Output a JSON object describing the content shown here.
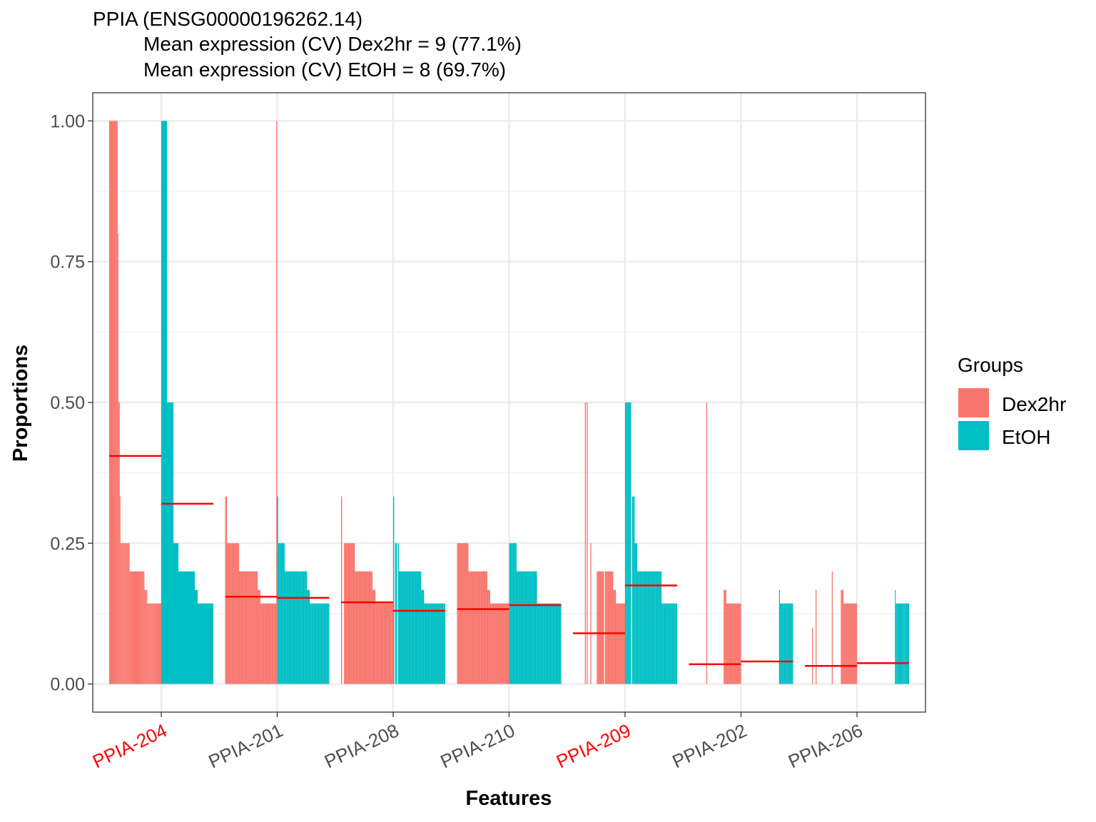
{
  "chart_data": {
    "type": "bar",
    "title": [
      "PPIA (ENSG00000196262.14)",
      "Mean expression (CV) Dex2hr = 9 (77.1%)",
      "Mean expression (CV) EtOH = 8 (69.7%)"
    ],
    "xlabel": "Features",
    "ylabel": "Proportions",
    "ylim": [
      -0.05,
      1.05
    ],
    "yticks": [
      {
        "value": 0.0,
        "label": "0.00"
      },
      {
        "value": 0.25,
        "label": "0.25"
      },
      {
        "value": 0.5,
        "label": "0.50"
      },
      {
        "value": 0.75,
        "label": "0.75"
      },
      {
        "value": 1.0,
        "label": "1.00"
      }
    ],
    "grid": true,
    "legend": {
      "title": "Groups",
      "position": "right",
      "items": [
        {
          "name": "Dex2hr",
          "color": "#F8766D"
        },
        {
          "name": "EtOH",
          "color": "#00BFC4"
        }
      ]
    },
    "colors": {
      "Dex2hr": "#F8766D",
      "EtOH": "#00BFC4",
      "mean_line": "#FF0000",
      "highlight_label": "#FF0000",
      "normal_label": "#4d4d4d"
    },
    "categories": [
      {
        "name": "PPIA-204",
        "highlight": true,
        "groups": [
          {
            "group": "Dex2hr",
            "mean": 0.405,
            "values": [
              1.0,
              1.0,
              1.0,
              1.0,
              1.0,
              1.0,
              1.0,
              1.0,
              1.0,
              1.0,
              1.0,
              1.0,
              0.8,
              0.5,
              0.5,
              0.333,
              0.25,
              0.25,
              0.25,
              0.25,
              0.25,
              0.25,
              0.25,
              0.25,
              0.25,
              0.25,
              0.25,
              0.25,
              0.25,
              0.2,
              0.2,
              0.2,
              0.2,
              0.2,
              0.2,
              0.2,
              0.2,
              0.2,
              0.2,
              0.2,
              0.2,
              0.2,
              0.2,
              0.2,
              0.2,
              0.2,
              0.2,
              0.2,
              0.2,
              0.2,
              0.167,
              0.167,
              0.167,
              0.167,
              0.143,
              0.143,
              0.143,
              0.143,
              0.143,
              0.143,
              0.143,
              0.143,
              0.143,
              0.143,
              0.143,
              0.143,
              0.143,
              0.143,
              0.143,
              0.143,
              0.143,
              0.143,
              0.143,
              0.143
            ]
          },
          {
            "group": "EtOH",
            "mean": 0.32,
            "values": [
              1.0,
              1.0,
              1.0,
              1.0,
              1.0,
              1.0,
              1.0,
              1.0,
              0.5,
              0.5,
              0.5,
              0.5,
              0.5,
              0.5,
              0.5,
              0.5,
              0.5,
              0.25,
              0.25,
              0.25,
              0.25,
              0.25,
              0.25,
              0.25,
              0.2,
              0.2,
              0.2,
              0.2,
              0.2,
              0.2,
              0.2,
              0.2,
              0.2,
              0.2,
              0.2,
              0.2,
              0.2,
              0.2,
              0.2,
              0.2,
              0.2,
              0.2,
              0.2,
              0.2,
              0.2,
              0.2,
              0.2,
              0.167,
              0.167,
              0.167,
              0.167,
              0.143,
              0.143,
              0.143,
              0.143,
              0.143,
              0.143,
              0.143,
              0.143,
              0.143,
              0.143,
              0.143,
              0.143,
              0.143,
              0.143,
              0.143,
              0.143,
              0.143,
              0.143,
              0.143,
              0.143,
              0.143,
              0.143
            ]
          }
        ]
      },
      {
        "name": "PPIA-201",
        "highlight": false,
        "groups": [
          {
            "group": "Dex2hr",
            "mean": 0.155,
            "values": [
              0.333,
              0.333,
              0.25,
              0.25,
              0.25,
              0.25,
              0.25,
              0.25,
              0.25,
              0.25,
              0.25,
              0.25,
              0.25,
              0.25,
              0.25,
              0.2,
              0.2,
              0.2,
              0.2,
              0.2,
              0.2,
              0.2,
              0.2,
              0.2,
              0.2,
              0.2,
              0.2,
              0.2,
              0.2,
              0.2,
              0.2,
              0.2,
              0.2,
              0.2,
              0.2,
              0.167,
              0.167,
              0.167,
              0.143,
              0.143,
              0.143,
              0.143,
              0.143,
              0.143,
              0.143,
              0.143,
              0.143,
              0.143,
              0.143,
              0.143,
              0.143,
              0.143,
              0.143,
              0.143,
              0.143,
              1.0
            ]
          },
          {
            "group": "EtOH",
            "mean": 0.153,
            "values": [
              0.333,
              0.25,
              0.25,
              0.25,
              0.25,
              0.25,
              0.25,
              0.25,
              0.2,
              0.2,
              0.2,
              0.2,
              0.2,
              0.2,
              0.2,
              0.2,
              0.2,
              0.2,
              0.2,
              0.2,
              0.2,
              0.2,
              0.2,
              0.2,
              0.2,
              0.2,
              0.2,
              0.2,
              0.2,
              0.2,
              0.2,
              0.2,
              0.167,
              0.167,
              0.167,
              0.143,
              0.143,
              0.143,
              0.143,
              0.143,
              0.143,
              0.143,
              0.143,
              0.143,
              0.143,
              0.143,
              0.143,
              0.143,
              0.143,
              0.143,
              0.143,
              0.143,
              0.143,
              0.143,
              0.143,
              0.143
            ]
          }
        ]
      },
      {
        "name": "PPIA-208",
        "highlight": false,
        "groups": [
          {
            "group": "Dex2hr",
            "mean": 0.145,
            "values": [
              0.333,
              0,
              0,
              0.25,
              0.25,
              0.25,
              0.25,
              0.25,
              0.25,
              0.25,
              0.25,
              0.25,
              0.25,
              0.25,
              0.2,
              0.2,
              0.2,
              0.2,
              0.2,
              0.2,
              0.2,
              0.2,
              0.2,
              0.2,
              0.2,
              0.2,
              0.2,
              0.2,
              0.2,
              0.2,
              0.2,
              0.2,
              0.167,
              0.167,
              0.167,
              0.143,
              0.143,
              0.143,
              0.143,
              0.143,
              0.143,
              0.143,
              0.143,
              0.143,
              0.143,
              0.143,
              0.143,
              0.143,
              0.143,
              0.143,
              0.143,
              0.143,
              0.143
            ]
          },
          {
            "group": "EtOH",
            "mean": 0.13,
            "values": [
              0.333,
              0,
              0.25,
              0.25,
              0,
              0.25,
              0.2,
              0.2,
              0.2,
              0.2,
              0.2,
              0.2,
              0.2,
              0.2,
              0.2,
              0.2,
              0.2,
              0.2,
              0.2,
              0.2,
              0.2,
              0.2,
              0.2,
              0.2,
              0.2,
              0.2,
              0.2,
              0.2,
              0.2,
              0.167,
              0.167,
              0.167,
              0.143,
              0.143,
              0.143,
              0.143,
              0.143,
              0.143,
              0.143,
              0.143,
              0.143,
              0.143,
              0.143,
              0.143,
              0.143,
              0.143,
              0.143,
              0.143,
              0.143,
              0.143,
              0.143,
              0.143,
              0.143,
              0.143
            ]
          }
        ]
      },
      {
        "name": "PPIA-210",
        "highlight": false,
        "groups": [
          {
            "group": "Dex2hr",
            "mean": 0.133,
            "values": [
              0.25,
              0.25,
              0.25,
              0.25,
              0.25,
              0.25,
              0.25,
              0.25,
              0.25,
              0.25,
              0.25,
              0.25,
              0.2,
              0.2,
              0.2,
              0.2,
              0.2,
              0.2,
              0.2,
              0.2,
              0.2,
              0.2,
              0.2,
              0.2,
              0.2,
              0.2,
              0.2,
              0.2,
              0.2,
              0.2,
              0.2,
              0.2,
              0.167,
              0.167,
              0.167,
              0.143,
              0.143,
              0.143,
              0.143,
              0.143,
              0.143,
              0.143,
              0.143,
              0.143,
              0.143,
              0.143,
              0.143,
              0.143,
              0.143,
              0.143,
              0.143,
              0.143,
              0.143,
              0.143,
              0.143
            ]
          },
          {
            "group": "EtOH",
            "mean": 0.14,
            "values": [
              0.25,
              0.25,
              0.25,
              0.25,
              0.25,
              0.25,
              0.25,
              0.25,
              0.2,
              0.2,
              0.2,
              0.2,
              0.2,
              0.2,
              0.2,
              0.2,
              0.2,
              0.2,
              0.2,
              0.2,
              0.2,
              0.2,
              0.2,
              0.2,
              0.2,
              0.2,
              0.2,
              0.2,
              0.2,
              0.2,
              0.143,
              0.143,
              0.143,
              0.143,
              0.143,
              0.143,
              0.143,
              0.143,
              0.143,
              0.143,
              0.143,
              0.143,
              0.143,
              0.143,
              0.143,
              0.143,
              0.143,
              0.143,
              0.143,
              0.143,
              0.143,
              0.143,
              0.143,
              0.143,
              0.143,
              0.143
            ]
          }
        ]
      },
      {
        "name": "PPIA-209",
        "highlight": true,
        "groups": [
          {
            "group": "Dex2hr",
            "mean": 0.09,
            "values": [
              0,
              0,
              0,
              0,
              0,
              0,
              0,
              0,
              0,
              0,
              0,
              0,
              0,
              0.5,
              0,
              0.5,
              0,
              0,
              0,
              0.25,
              0,
              0,
              0,
              0,
              0,
              0,
              0.2,
              0.2,
              0.2,
              0.2,
              0.2,
              0.2,
              0.2,
              0.2,
              0,
              0.2,
              0.2,
              0.2,
              0.2,
              0.2,
              0.2,
              0.2,
              0.2,
              0.2,
              0.167,
              0.167,
              0.167,
              0.143,
              0.143,
              0.143,
              0.143,
              0.143,
              0.143,
              0.143,
              0.143,
              0.143,
              0.143
            ]
          },
          {
            "group": "EtOH",
            "mean": 0.175,
            "values": [
              0.5,
              0.5,
              0.5,
              0.5,
              0.5,
              0.5,
              0.5,
              0,
              0.333,
              0.333,
              0.333,
              0.25,
              0.25,
              0.25,
              0.2,
              0.2,
              0.2,
              0.2,
              0.2,
              0.2,
              0.2,
              0.2,
              0.2,
              0.2,
              0.2,
              0.2,
              0.2,
              0.2,
              0.2,
              0.2,
              0.2,
              0.2,
              0.2,
              0.2,
              0.2,
              0.2,
              0.2,
              0.2,
              0.2,
              0.2,
              0.2,
              0.2,
              0.143,
              0.143,
              0.143,
              0.143,
              0.143,
              0.143,
              0.143,
              0.143,
              0.143,
              0.143,
              0.143,
              0.143,
              0.143,
              0.143,
              0.143,
              0.143,
              0.143,
              0.143
            ]
          }
        ]
      },
      {
        "name": "PPIA-202",
        "highlight": false,
        "groups": [
          {
            "group": "Dex2hr",
            "mean": 0.035,
            "values": [
              0,
              0,
              0,
              0,
              0,
              0,
              0,
              0,
              0,
              0,
              0,
              0,
              0,
              0,
              0,
              0,
              0,
              0,
              0,
              0,
              0.5,
              0,
              0,
              0,
              0,
              0,
              0,
              0,
              0,
              0,
              0,
              0,
              0,
              0,
              0,
              0,
              0,
              0,
              0,
              0,
              0.167,
              0.167,
              0.167,
              0.143,
              0.143,
              0.143,
              0.143,
              0.143,
              0.143,
              0.143,
              0.143,
              0.143,
              0.143,
              0.143,
              0.143,
              0.143,
              0.143,
              0.143,
              0.143,
              0.143
            ]
          },
          {
            "group": "EtOH",
            "mean": 0.04,
            "values": [
              0,
              0,
              0,
              0,
              0,
              0,
              0,
              0,
              0,
              0,
              0,
              0,
              0,
              0,
              0,
              0,
              0,
              0,
              0,
              0,
              0,
              0,
              0,
              0,
              0,
              0,
              0,
              0,
              0,
              0,
              0,
              0,
              0,
              0,
              0,
              0,
              0,
              0,
              0,
              0,
              0,
              0,
              0,
              0,
              0,
              0,
              0.167,
              0.143,
              0.143,
              0.143,
              0.143,
              0.143,
              0.143,
              0.143,
              0.143,
              0.143,
              0.143,
              0.143,
              0.143,
              0.143,
              0.143,
              0.143,
              0.143
            ]
          }
        ]
      },
      {
        "name": "PPIA-206",
        "highlight": false,
        "groups": [
          {
            "group": "Dex2hr",
            "mean": 0.032,
            "values": [
              0,
              0,
              0,
              0,
              0,
              0,
              0,
              0,
              0.1,
              0,
              0,
              0,
              0.167,
              0,
              0,
              0,
              0,
              0,
              0,
              0,
              0,
              0,
              0,
              0,
              0,
              0,
              0,
              0,
              0,
              0,
              0.2,
              0,
              0,
              0,
              0,
              0,
              0,
              0,
              0,
              0,
              0.167,
              0.167,
              0.167,
              0.143,
              0.143,
              0.143,
              0.143,
              0.143,
              0.143,
              0.143,
              0.143,
              0.143,
              0.143,
              0.143,
              0.143,
              0.143,
              0.143,
              0.143
            ]
          },
          {
            "group": "EtOH",
            "mean": 0.037,
            "values": [
              0,
              0,
              0,
              0,
              0,
              0,
              0,
              0,
              0,
              0,
              0,
              0,
              0,
              0,
              0,
              0,
              0,
              0,
              0,
              0,
              0,
              0,
              0,
              0,
              0,
              0,
              0,
              0,
              0,
              0,
              0,
              0,
              0,
              0,
              0,
              0,
              0,
              0,
              0,
              0,
              0,
              0,
              0,
              0,
              0,
              0,
              0,
              0,
              0,
              0,
              0,
              0.167,
              0.143,
              0.143,
              0.143,
              0.143,
              0.143,
              0.143,
              0.143,
              0.143,
              0.143,
              0.143,
              0.143,
              0.143,
              0.143,
              0.143,
              0.143,
              0.143,
              0.143,
              0.143
            ]
          }
        ]
      }
    ]
  }
}
